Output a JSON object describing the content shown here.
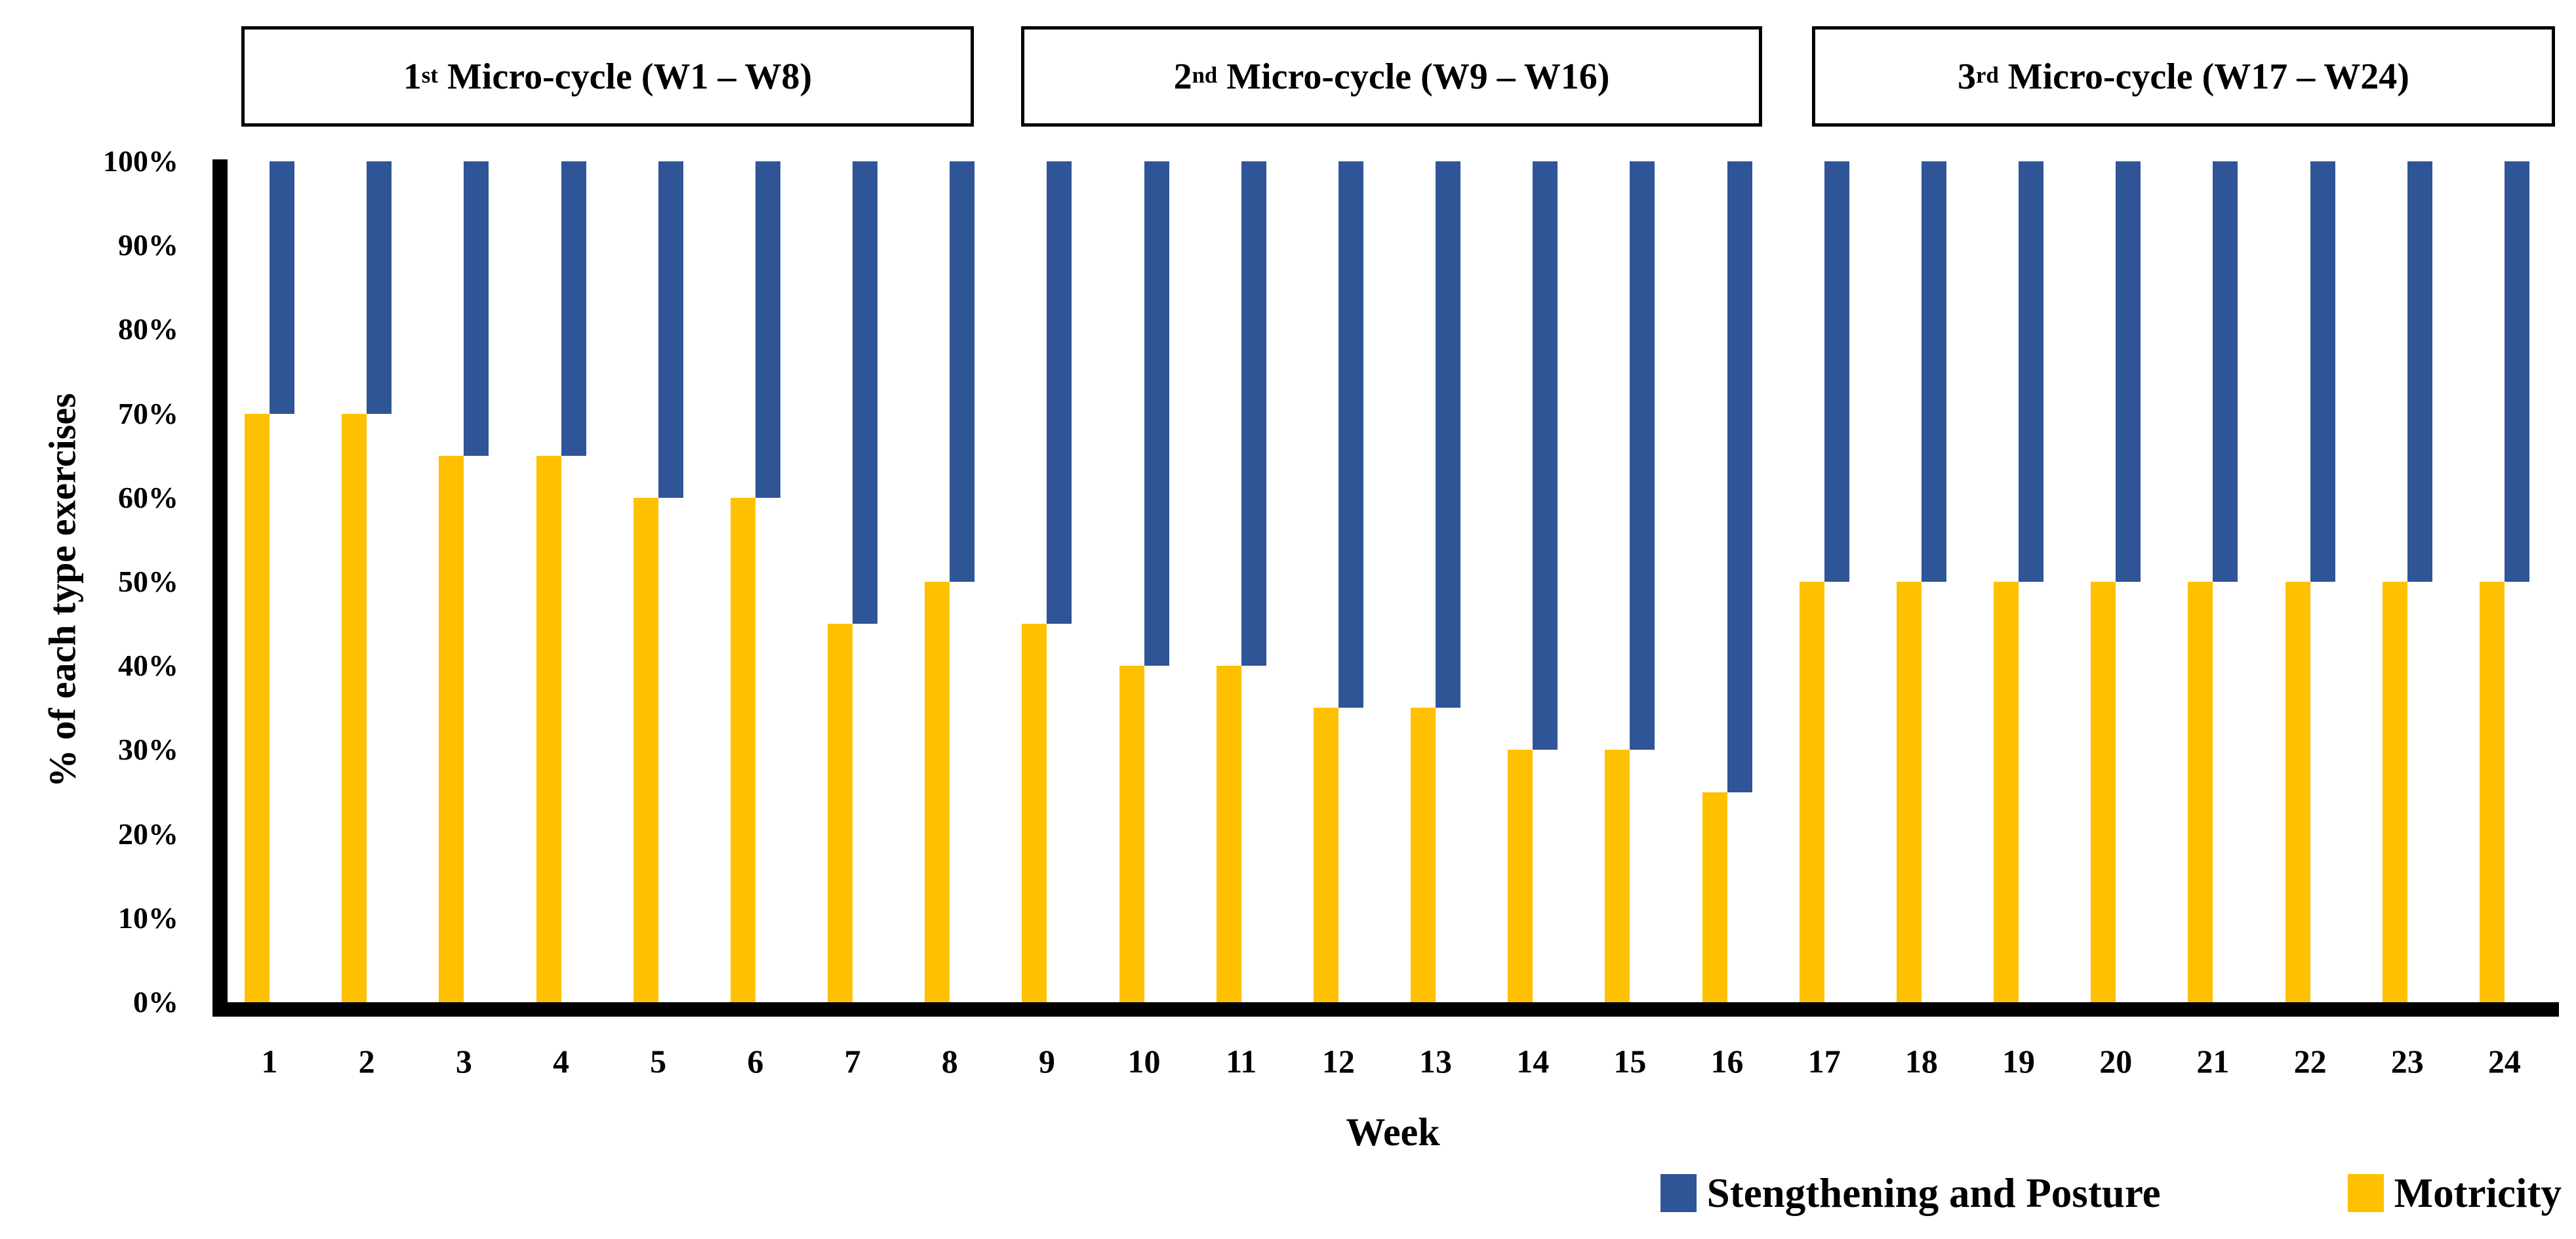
{
  "figure": {
    "micro_cycles": [
      {
        "num": "1",
        "ord": "st",
        "label": " Micro-cycle (W1 – W8)"
      },
      {
        "num": "2",
        "ord": "nd",
        "label": " Micro-cycle (W9 – W16)"
      },
      {
        "num": "3",
        "ord": "rd",
        "label": " Micro-cycle (W17 – W24)"
      }
    ]
  },
  "chart_data": {
    "type": "bar",
    "title": "",
    "xlabel": "Week",
    "ylabel": "% of each type exercises",
    "categories": [
      1,
      2,
      3,
      4,
      5,
      6,
      7,
      8,
      9,
      10,
      11,
      12,
      13,
      14,
      15,
      16,
      17,
      18,
      19,
      20,
      21,
      22,
      23,
      24
    ],
    "series": [
      {
        "name": "Stengthening and Posture",
        "color": "#2F5597",
        "render": "hangs from 100% down to (100 - value)%",
        "values": [
          30,
          30,
          35,
          35,
          40,
          40,
          55,
          50,
          55,
          60,
          60,
          65,
          65,
          70,
          70,
          75,
          50,
          50,
          50,
          50,
          50,
          50,
          50,
          50
        ]
      },
      {
        "name": "Motricity",
        "color": "#FFC000",
        "render": "rises from 0% up to value%",
        "values": [
          70,
          70,
          65,
          65,
          60,
          60,
          45,
          50,
          45,
          40,
          40,
          35,
          35,
          30,
          30,
          25,
          50,
          50,
          50,
          50,
          50,
          50,
          50,
          50
        ]
      }
    ],
    "y_ticks": [
      "0%",
      "10%",
      "20%",
      "30%",
      "40%",
      "50%",
      "60%",
      "70%",
      "80%",
      "90%",
      "100%"
    ],
    "ylim": [
      0,
      100
    ],
    "grid": false,
    "legend_position": "bottom-right",
    "axis_color": "#000000",
    "bar_layout": "paired per week: Motricity bar on left from axis up, Stengthening and Posture bar on right from top down"
  }
}
